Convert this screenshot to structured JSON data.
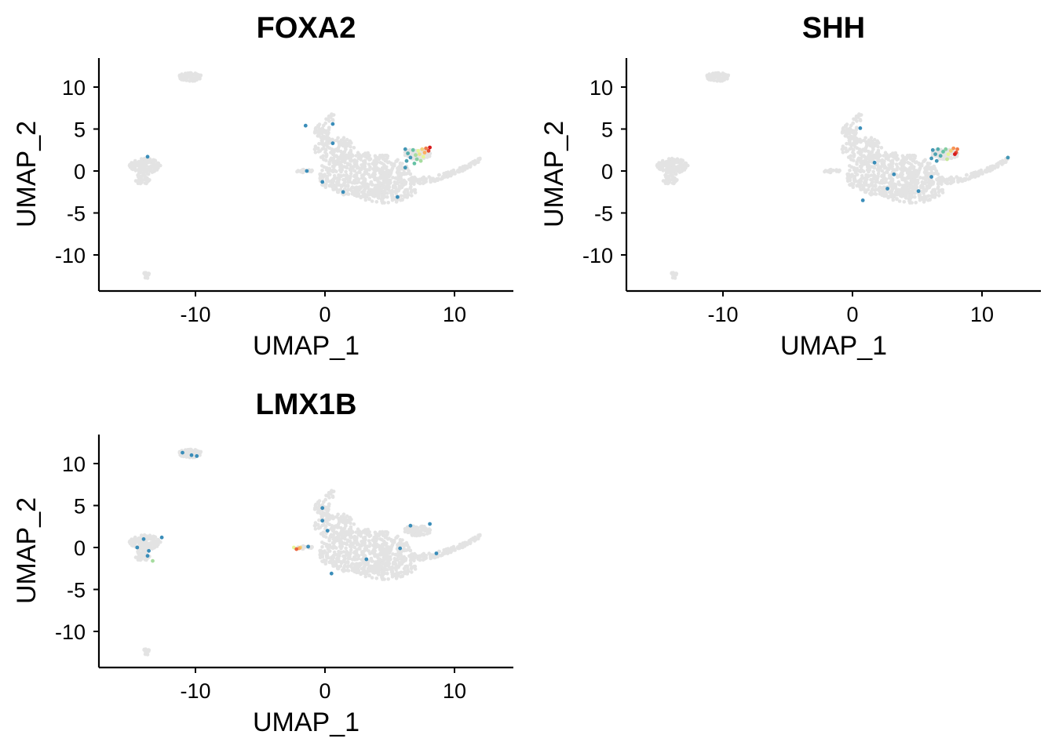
{
  "chart_data": [
    {
      "type": "scatter",
      "title": "FOXA2",
      "xlabel": "UMAP_1",
      "ylabel": "UMAP_2",
      "xticks": [
        "-10",
        "0",
        "10"
      ],
      "yticks": [
        "10",
        "5",
        "0",
        "-5",
        "-10"
      ],
      "grid": false,
      "legend": "none",
      "expressing_cells": [
        {
          "x": 6.2,
          "y": 2.6,
          "level": 0.1
        },
        {
          "x": 6.4,
          "y": 2.1,
          "level": 0.2
        },
        {
          "x": 6.6,
          "y": 1.6,
          "level": 0.1
        },
        {
          "x": 6.8,
          "y": 2.5,
          "level": 0.3
        },
        {
          "x": 7.0,
          "y": 1.9,
          "level": 0.4
        },
        {
          "x": 7.1,
          "y": 1.4,
          "level": 0.35
        },
        {
          "x": 7.2,
          "y": 2.4,
          "level": 0.5
        },
        {
          "x": 7.3,
          "y": 2.0,
          "level": 0.55
        },
        {
          "x": 7.5,
          "y": 2.6,
          "level": 0.6
        },
        {
          "x": 7.6,
          "y": 1.7,
          "level": 0.5
        },
        {
          "x": 7.7,
          "y": 2.2,
          "level": 0.7
        },
        {
          "x": 7.8,
          "y": 2.7,
          "level": 0.8
        },
        {
          "x": 8.0,
          "y": 2.4,
          "level": 0.9
        },
        {
          "x": 8.1,
          "y": 2.8,
          "level": 1.0
        },
        {
          "x": 6.3,
          "y": 1.2,
          "level": 0.15
        },
        {
          "x": 6.2,
          "y": 0.4,
          "level": 0.1
        },
        {
          "x": 7.4,
          "y": 1.2,
          "level": 0.4
        },
        {
          "x": 6.9,
          "y": 0.9,
          "level": 0.3
        },
        {
          "x": -1.5,
          "y": 5.4,
          "level": 0.05
        },
        {
          "x": 0.6,
          "y": 5.6,
          "level": 0.05
        },
        {
          "x": 0.6,
          "y": 3.3,
          "level": 0.05
        },
        {
          "x": -1.4,
          "y": 0.0,
          "level": 0.05
        },
        {
          "x": -0.2,
          "y": -1.3,
          "level": 0.05
        },
        {
          "x": 1.4,
          "y": -2.5,
          "level": 0.05
        },
        {
          "x": 5.6,
          "y": -3.1,
          "level": 0.05
        },
        {
          "x": -13.7,
          "y": 1.7,
          "level": 0.05
        }
      ]
    },
    {
      "type": "scatter",
      "title": "SHH",
      "xlabel": "UMAP_1",
      "ylabel": "UMAP_2",
      "xticks": [
        "-10",
        "0",
        "10"
      ],
      "yticks": [
        "10",
        "5",
        "0",
        "-5",
        "-10"
      ],
      "grid": false,
      "legend": "none",
      "expressing_cells": [
        {
          "x": 6.2,
          "y": 2.5,
          "level": 0.1
        },
        {
          "x": 6.4,
          "y": 2.0,
          "level": 0.15
        },
        {
          "x": 6.6,
          "y": 2.6,
          "level": 0.2
        },
        {
          "x": 6.8,
          "y": 1.8,
          "level": 0.2
        },
        {
          "x": 7.0,
          "y": 2.3,
          "level": 0.3
        },
        {
          "x": 7.2,
          "y": 2.6,
          "level": 0.35
        },
        {
          "x": 7.4,
          "y": 2.0,
          "level": 0.5
        },
        {
          "x": 7.6,
          "y": 2.4,
          "level": 0.6
        },
        {
          "x": 7.8,
          "y": 2.7,
          "level": 0.75
        },
        {
          "x": 8.0,
          "y": 2.2,
          "level": 0.9
        },
        {
          "x": 8.1,
          "y": 2.6,
          "level": 0.8
        },
        {
          "x": 7.9,
          "y": 2.0,
          "level": 1.0
        },
        {
          "x": 6.1,
          "y": 1.5,
          "level": 0.1
        },
        {
          "x": 6.5,
          "y": 1.2,
          "level": 0.1
        },
        {
          "x": 7.3,
          "y": 1.4,
          "level": 0.45
        },
        {
          "x": 0.6,
          "y": 5.1,
          "level": 0.05
        },
        {
          "x": 1.7,
          "y": 1.0,
          "level": 0.05
        },
        {
          "x": 3.2,
          "y": -0.4,
          "level": 0.05
        },
        {
          "x": 6.1,
          "y": -0.7,
          "level": 0.05
        },
        {
          "x": 5.1,
          "y": -2.4,
          "level": 0.05
        },
        {
          "x": 2.7,
          "y": -2.1,
          "level": 0.05
        },
        {
          "x": 0.8,
          "y": -3.5,
          "level": 0.05
        },
        {
          "x": 12.0,
          "y": 1.6,
          "level": 0.1
        }
      ]
    },
    {
      "type": "scatter",
      "title": "LMX1B",
      "xlabel": "UMAP_1",
      "ylabel": "UMAP_2",
      "xticks": [
        "-10",
        "0",
        "10"
      ],
      "yticks": [
        "10",
        "5",
        "0",
        "-5",
        "-10"
      ],
      "grid": false,
      "legend": "none",
      "expressing_cells": [
        {
          "x": -2.2,
          "y": -0.2,
          "level": 0.85
        },
        {
          "x": -2.0,
          "y": -0.1,
          "level": 0.7
        },
        {
          "x": -1.9,
          "y": 0.0,
          "level": 0.6
        },
        {
          "x": -2.4,
          "y": 0.0,
          "level": 0.5
        },
        {
          "x": -1.3,
          "y": 0.1,
          "level": 0.05
        },
        {
          "x": -11.0,
          "y": 11.3,
          "level": 0.05
        },
        {
          "x": -10.3,
          "y": 11.0,
          "level": 0.05
        },
        {
          "x": -9.9,
          "y": 10.9,
          "level": 0.05
        },
        {
          "x": -14.5,
          "y": 0.0,
          "level": 0.05
        },
        {
          "x": -13.6,
          "y": -0.4,
          "level": 0.05
        },
        {
          "x": -13.7,
          "y": -1.0,
          "level": 0.05
        },
        {
          "x": -13.3,
          "y": -1.6,
          "level": 0.4
        },
        {
          "x": -12.6,
          "y": 1.2,
          "level": 0.05
        },
        {
          "x": -14.0,
          "y": 1.0,
          "level": 0.05
        },
        {
          "x": -0.2,
          "y": 3.2,
          "level": 0.05
        },
        {
          "x": 0.2,
          "y": 2.0,
          "level": 0.05
        },
        {
          "x": -0.2,
          "y": 4.7,
          "level": 0.05
        },
        {
          "x": 3.2,
          "y": -1.4,
          "level": 0.05
        },
        {
          "x": 5.8,
          "y": -0.1,
          "level": 0.05
        },
        {
          "x": 6.6,
          "y": 2.6,
          "level": 0.05
        },
        {
          "x": 8.1,
          "y": 2.8,
          "level": 0.05
        },
        {
          "x": 8.6,
          "y": -0.7,
          "level": 0.05
        },
        {
          "x": 0.5,
          "y": -3.1,
          "level": 0.05
        }
      ]
    }
  ]
}
